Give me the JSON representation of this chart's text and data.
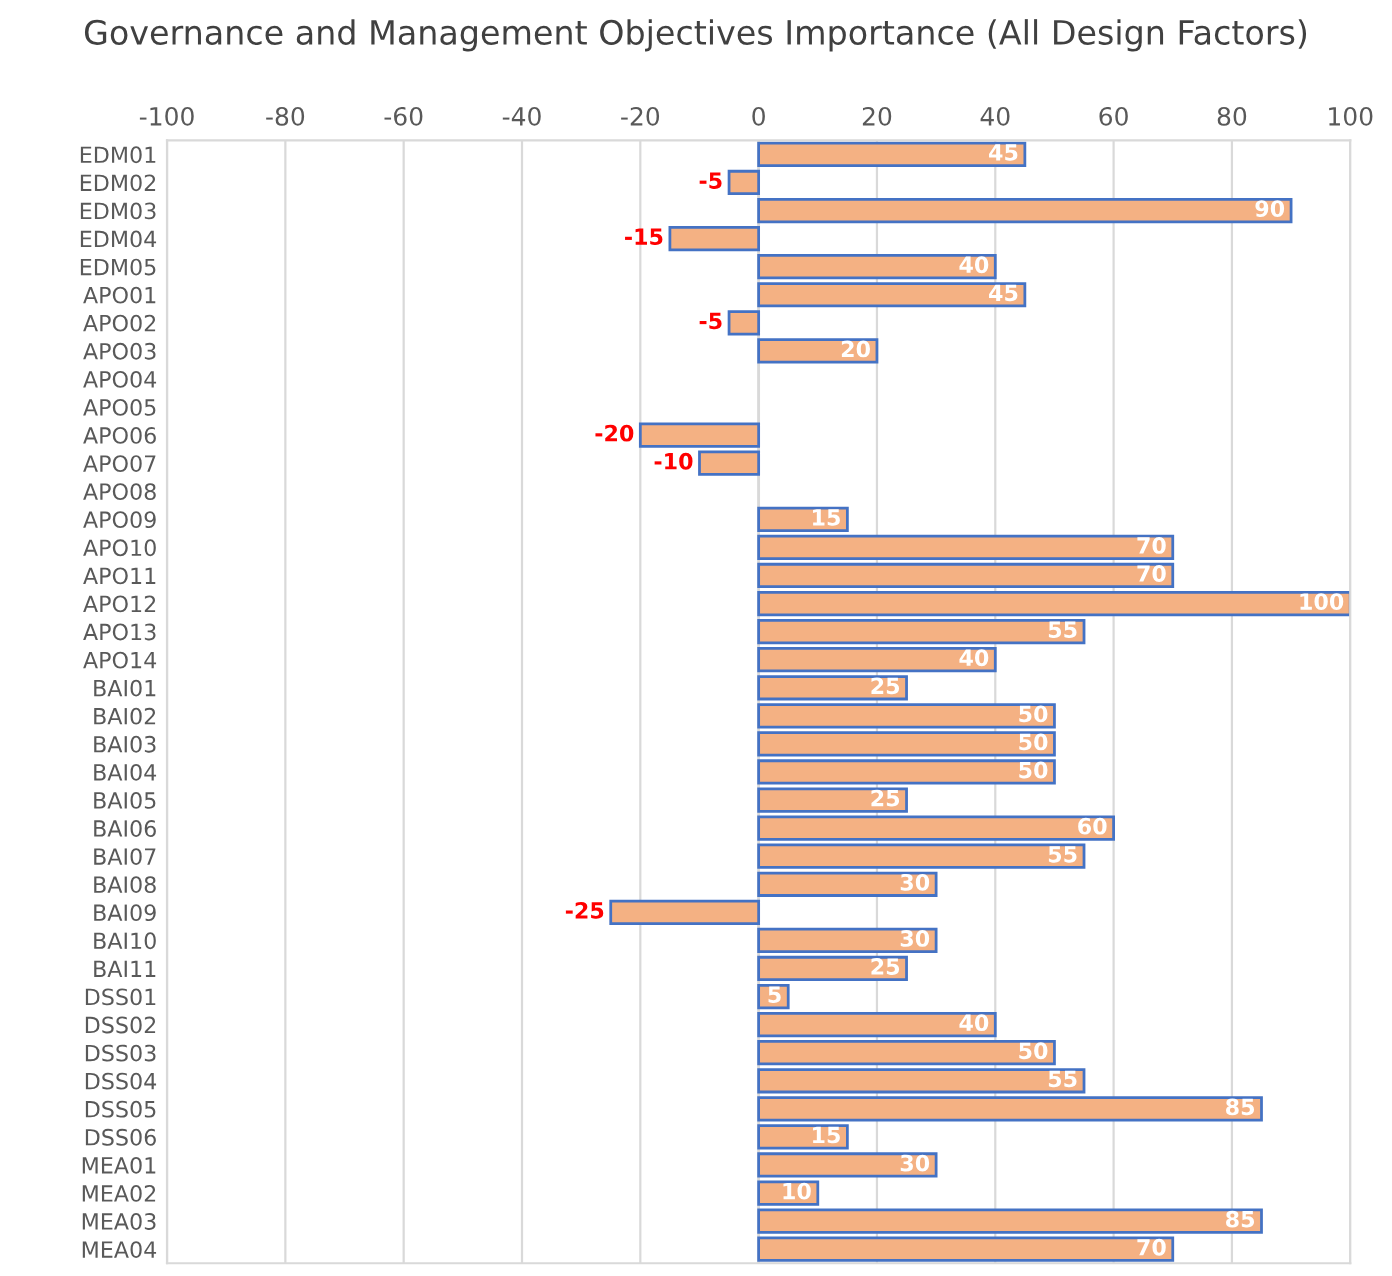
{
  "chart_data": {
    "type": "bar",
    "orientation": "horizontal",
    "title": "Governance and Management Objectives Importance (All Design Factors)",
    "categories": [
      "EDM01",
      "EDM02",
      "EDM03",
      "EDM04",
      "EDM05",
      "APO01",
      "APO02",
      "APO03",
      "APO04",
      "APO05",
      "APO06",
      "APO07",
      "APO08",
      "APO09",
      "APO10",
      "APO11",
      "APO12",
      "APO13",
      "APO14",
      "BAI01",
      "BAI02",
      "BAI03",
      "BAI04",
      "BAI05",
      "BAI06",
      "BAI07",
      "BAI08",
      "BAI09",
      "BAI10",
      "BAI11",
      "DSS01",
      "DSS02",
      "DSS03",
      "DSS04",
      "DSS05",
      "DSS06",
      "MEA01",
      "MEA02",
      "MEA03",
      "MEA04"
    ],
    "values": [
      45,
      -5,
      90,
      -15,
      40,
      45,
      -5,
      20,
      0,
      0,
      -20,
      -10,
      0,
      15,
      70,
      70,
      100,
      55,
      40,
      25,
      50,
      50,
      50,
      25,
      60,
      55,
      30,
      -25,
      30,
      25,
      5,
      40,
      50,
      55,
      85,
      15,
      30,
      10,
      85,
      70
    ],
    "value_labels": [
      "45",
      "-5",
      "90",
      "-15",
      "40",
      "45",
      "-5",
      "20",
      null,
      null,
      "-20",
      "-10",
      null,
      "15",
      "70",
      "70",
      "100",
      "55",
      "40",
      "25",
      "50",
      "50",
      "50",
      "25",
      "60",
      "55",
      "30",
      "-25",
      "30",
      "25",
      "5",
      "40",
      "50",
      "55",
      "85",
      "15",
      "30",
      "10",
      "85",
      "70"
    ],
    "color": "#f4b183",
    "xlim": [
      -100,
      100
    ],
    "xticks": [
      -100,
      -80,
      -60,
      -40,
      -20,
      0,
      20,
      40,
      60,
      80,
      100
    ],
    "grid": "x",
    "legend": false
  }
}
